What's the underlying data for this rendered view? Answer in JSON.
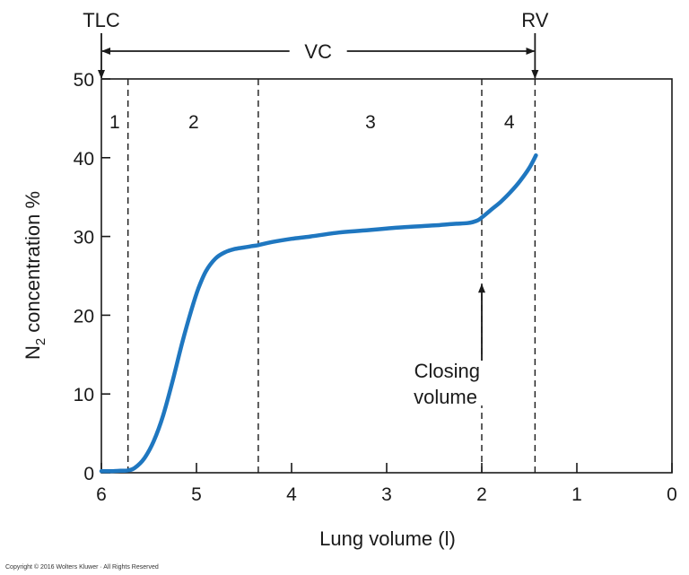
{
  "chart_data": {
    "type": "line",
    "ylabel_main": "N",
    "ylabel_sub": "2",
    "ylabel_rest": " concentration %",
    "xlabel": "Lung volume (l)",
    "xlim": [
      6,
      0
    ],
    "ylim": [
      0,
      50
    ],
    "x_ticks": [
      6,
      5,
      4,
      3,
      2,
      1,
      0
    ],
    "y_ticks": [
      0,
      10,
      20,
      30,
      40,
      50
    ],
    "series": [
      {
        "color": "#1f77c0",
        "x": [
          6.0,
          5.9,
          5.8,
          5.72,
          5.65,
          5.55,
          5.45,
          5.35,
          5.25,
          5.15,
          5.05,
          4.98,
          4.9,
          4.8,
          4.7,
          4.6,
          4.5,
          4.4,
          4.35,
          4.2,
          4.0,
          3.8,
          3.5,
          3.2,
          3.0,
          2.8,
          2.5,
          2.3,
          2.15,
          2.05,
          2.0,
          1.9,
          1.8,
          1.7,
          1.6,
          1.5,
          1.43
        ],
        "y": [
          0.2,
          0.2,
          0.25,
          0.3,
          0.6,
          1.8,
          4.0,
          7.3,
          11.7,
          16.5,
          20.8,
          23.4,
          25.6,
          27.2,
          28.0,
          28.4,
          28.6,
          28.8,
          28.9,
          29.3,
          29.7,
          30.0,
          30.5,
          30.8,
          31.0,
          31.2,
          31.4,
          31.6,
          31.7,
          32.0,
          32.4,
          33.4,
          34.4,
          35.6,
          37.0,
          38.7,
          40.3
        ]
      }
    ],
    "phase_boundaries": [
      5.72,
      4.35,
      2.0,
      1.44
    ],
    "phase_labels": [
      {
        "text": "1",
        "x": 5.86
      },
      {
        "text": "2",
        "x": 5.03
      },
      {
        "text": "3",
        "x": 3.17
      },
      {
        "text": "4",
        "x": 1.71
      }
    ],
    "top_annotations": {
      "left": "TLC",
      "left_x": 6.0,
      "right": "RV",
      "right_x": 1.44,
      "middle": "VC"
    },
    "closing_volume": {
      "line1": "Closing",
      "line2": "volume",
      "x": 2.0,
      "arrow_tip_y": 24
    }
  },
  "copyright": "Copyright © 2016 Wolters Kluwer · All Rights Reserved"
}
